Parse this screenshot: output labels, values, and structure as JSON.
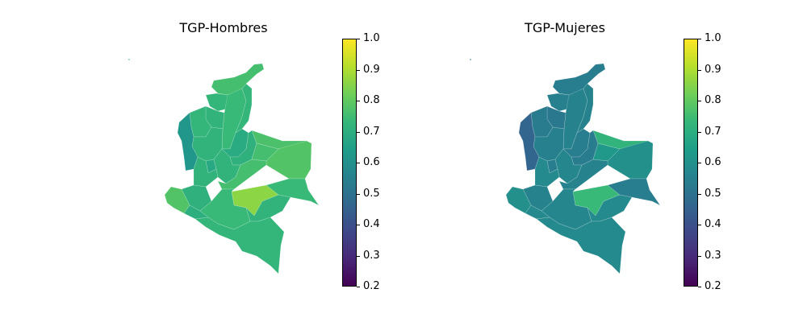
{
  "colorbar": {
    "ticks": [
      "1.0",
      "0.9",
      "0.8",
      "0.7",
      "0.6",
      "0.5",
      "0.4",
      "0.3",
      "0.2"
    ],
    "range": [
      0.2,
      1.0
    ],
    "stops": [
      "#440154",
      "#482878",
      "#3e4989",
      "#31688e",
      "#26828e",
      "#1f9e89",
      "#35b779",
      "#6ece58",
      "#b5de2b",
      "#fde725"
    ]
  },
  "maps": [
    {
      "title": "TGP-Hombres",
      "regions": {
        "north": 0.76,
        "atlantico": 0.73,
        "bolivar": 0.74,
        "sucre": 0.72,
        "cordoba": 0.73,
        "antioquia": 0.72,
        "choco": 0.62,
        "valle": 0.72,
        "cauca": 0.71,
        "narino": 0.78,
        "caldas": 0.68,
        "cundinamarca": 0.72,
        "boyaca": 0.71,
        "santander": 0.69,
        "norte_santander": 0.73,
        "arauca": 0.77,
        "casanare": 0.76,
        "vichada": 0.78,
        "meta": 0.76,
        "guaviare": 0.86,
        "caqueta": 0.74,
        "putumayo": 0.7,
        "guainia": 0.74,
        "vaupes": 0.72,
        "amazonas": 0.73
      }
    },
    {
      "title": "TGP-Mujeres",
      "regions": {
        "north": 0.54,
        "atlantico": 0.55,
        "bolivar": 0.56,
        "sucre": 0.52,
        "cordoba": 0.53,
        "antioquia": 0.55,
        "choco": 0.46,
        "valle": 0.58,
        "cauca": 0.56,
        "narino": 0.6,
        "caldas": 0.54,
        "cundinamarca": 0.57,
        "boyaca": 0.53,
        "santander": 0.54,
        "norte_santander": 0.56,
        "arauca": 0.72,
        "casanare": 0.63,
        "vichada": 0.6,
        "meta": 0.56,
        "guaviare": 0.74,
        "caqueta": 0.57,
        "putumayo": 0.58,
        "guainia": 0.54,
        "vaupes": 0.58,
        "amazonas": 0.58
      }
    }
  ]
}
